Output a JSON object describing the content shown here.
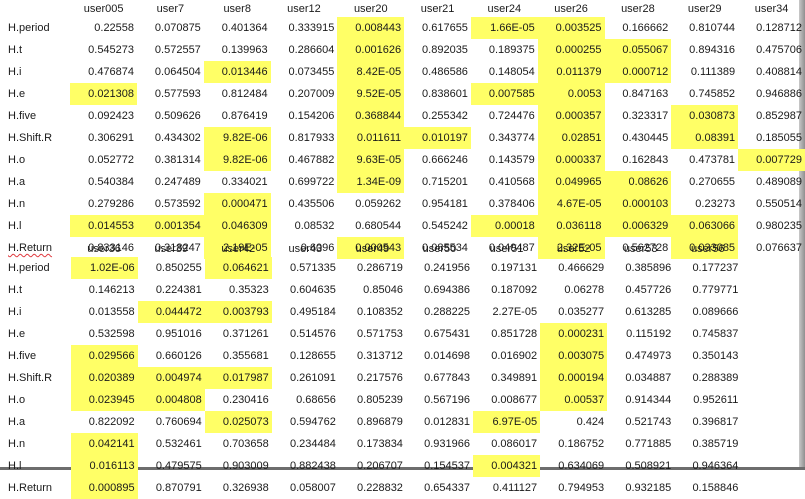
{
  "colors": {
    "highlight": "#ffff66",
    "background": "#ffffff"
  },
  "tables": [
    {
      "headers": [
        "user005",
        "user7",
        "user8",
        "user12",
        "user20",
        "user21",
        "user24",
        "user26",
        "user28",
        "user29",
        "user34"
      ],
      "rows": [
        {
          "label": "H.period",
          "cells": [
            {
              "v": "0.22558"
            },
            {
              "v": "0.070875"
            },
            {
              "v": "0.401364"
            },
            {
              "v": "0.333915"
            },
            {
              "v": "0.008443",
              "hl": true
            },
            {
              "v": "0.617655"
            },
            {
              "v": "1.66E-05",
              "hl": true
            },
            {
              "v": "0.003525",
              "hl": true
            },
            {
              "v": "0.166662"
            },
            {
              "v": "0.810744"
            },
            {
              "v": "0.128712"
            }
          ]
        },
        {
          "label": "H.t",
          "cells": [
            {
              "v": "0.545273"
            },
            {
              "v": "0.572557"
            },
            {
              "v": "0.139963"
            },
            {
              "v": "0.286604"
            },
            {
              "v": "0.001626",
              "hl": true
            },
            {
              "v": "0.892035"
            },
            {
              "v": "0.189375"
            },
            {
              "v": "0.000255",
              "hl": true
            },
            {
              "v": "0.055067",
              "hl": true
            },
            {
              "v": "0.894316"
            },
            {
              "v": "0.475706"
            }
          ]
        },
        {
          "label": "H.i",
          "cells": [
            {
              "v": "0.476874"
            },
            {
              "v": "0.064504"
            },
            {
              "v": "0.013446",
              "hl": true
            },
            {
              "v": "0.073455"
            },
            {
              "v": "8.42E-05",
              "hl": true
            },
            {
              "v": "0.486586"
            },
            {
              "v": "0.148054"
            },
            {
              "v": "0.011379",
              "hl": true
            },
            {
              "v": "0.000712",
              "hl": true
            },
            {
              "v": "0.111389"
            },
            {
              "v": "0.408814"
            }
          ]
        },
        {
          "label": "H.e",
          "cells": [
            {
              "v": "0.021308",
              "hl": true
            },
            {
              "v": "0.577593"
            },
            {
              "v": "0.812484"
            },
            {
              "v": "0.207009"
            },
            {
              "v": "9.52E-05",
              "hl": true
            },
            {
              "v": "0.838601"
            },
            {
              "v": "0.007585",
              "hl": true
            },
            {
              "v": "0.0053",
              "hl": true
            },
            {
              "v": "0.847163"
            },
            {
              "v": "0.745852"
            },
            {
              "v": "0.946886"
            }
          ]
        },
        {
          "label": "H.five",
          "cells": [
            {
              "v": "0.092423"
            },
            {
              "v": "0.509626"
            },
            {
              "v": "0.876419"
            },
            {
              "v": "0.154206"
            },
            {
              "v": "0.368844",
              "hl": true
            },
            {
              "v": "0.255342"
            },
            {
              "v": "0.724476"
            },
            {
              "v": "0.000357",
              "hl": true
            },
            {
              "v": "0.323317"
            },
            {
              "v": "0.030873",
              "hl": true
            },
            {
              "v": "0.852987"
            }
          ]
        },
        {
          "label": "H.Shift.R",
          "cells": [
            {
              "v": "0.306291"
            },
            {
              "v": "0.434302"
            },
            {
              "v": "9.82E-06",
              "hl": true
            },
            {
              "v": "0.817933"
            },
            {
              "v": "0.011611",
              "hl": true
            },
            {
              "v": "0.010197",
              "hl": true
            },
            {
              "v": "0.343774"
            },
            {
              "v": "0.02851",
              "hl": true
            },
            {
              "v": "0.430445"
            },
            {
              "v": "0.08391",
              "hl": true
            },
            {
              "v": "0.185055"
            }
          ]
        },
        {
          "label": "H.o",
          "cells": [
            {
              "v": "0.052772"
            },
            {
              "v": "0.381314"
            },
            {
              "v": "9.82E-06",
              "hl": true
            },
            {
              "v": "0.467882"
            },
            {
              "v": "9.63E-05",
              "hl": true
            },
            {
              "v": "0.666246"
            },
            {
              "v": "0.143579"
            },
            {
              "v": "0.000337",
              "hl": true
            },
            {
              "v": "0.162843"
            },
            {
              "v": "0.473781"
            },
            {
              "v": "0.007729",
              "hl": true
            }
          ]
        },
        {
          "label": "H.a",
          "cells": [
            {
              "v": "0.540384"
            },
            {
              "v": "0.247489"
            },
            {
              "v": "0.334021"
            },
            {
              "v": "0.699722"
            },
            {
              "v": "1.34E-09",
              "hl": true
            },
            {
              "v": "0.715201"
            },
            {
              "v": "0.410568"
            },
            {
              "v": "0.049965",
              "hl": true
            },
            {
              "v": "0.08626",
              "hl": true
            },
            {
              "v": "0.270655"
            },
            {
              "v": "0.489089"
            }
          ]
        },
        {
          "label": "H.n",
          "cells": [
            {
              "v": "0.279286"
            },
            {
              "v": "0.573592"
            },
            {
              "v": "0.000471",
              "hl": true
            },
            {
              "v": "0.435506"
            },
            {
              "v": "0.059262"
            },
            {
              "v": "0.954181"
            },
            {
              "v": "0.378406"
            },
            {
              "v": "4.67E-05",
              "hl": true
            },
            {
              "v": "0.000103",
              "hl": true
            },
            {
              "v": "0.23273"
            },
            {
              "v": "0.550514"
            }
          ]
        },
        {
          "label": "H.l",
          "cells": [
            {
              "v": "0.014553",
              "hl": true
            },
            {
              "v": "0.001354",
              "hl": true
            },
            {
              "v": "0.046309",
              "hl": true
            },
            {
              "v": "0.08532"
            },
            {
              "v": "0.680544"
            },
            {
              "v": "0.545242"
            },
            {
              "v": "0.00018",
              "hl": true
            },
            {
              "v": "0.036118",
              "hl": true
            },
            {
              "v": "0.006329",
              "hl": true
            },
            {
              "v": "0.063066",
              "hl": true
            },
            {
              "v": "0.980235"
            }
          ]
        },
        {
          "label": "H.Return",
          "squiggle": true,
          "cells": [
            {
              "v": "0.833146"
            },
            {
              "v": "0.318247"
            },
            {
              "v": "2.19E-05",
              "hl": true
            },
            {
              "v": "0.6096"
            },
            {
              "v": "0.000543",
              "hl": true
            },
            {
              "v": "0.085534"
            },
            {
              "v": "0.040487"
            },
            {
              "v": "2.32E-05",
              "hl": true
            },
            {
              "v": "0.562728"
            },
            {
              "v": "0.033085",
              "hl": true
            },
            {
              "v": "0.076637"
            }
          ]
        }
      ]
    },
    {
      "headers": [
        "user36",
        "user39",
        "user42",
        "user43",
        "user49",
        "user50",
        "user51",
        "user52",
        "user53",
        "user56"
      ],
      "rows": [
        {
          "label": "H.period",
          "cells": [
            {
              "v": "1.02E-06",
              "hl": true
            },
            {
              "v": "0.850255"
            },
            {
              "v": "0.064621",
              "hl": true
            },
            {
              "v": "0.571335"
            },
            {
              "v": "0.286719"
            },
            {
              "v": "0.241956"
            },
            {
              "v": "0.197131"
            },
            {
              "v": "0.466629"
            },
            {
              "v": "0.385896"
            },
            {
              "v": "0.177237"
            }
          ]
        },
        {
          "label": "H.t",
          "cells": [
            {
              "v": "0.146213"
            },
            {
              "v": "0.224381"
            },
            {
              "v": "0.35323"
            },
            {
              "v": "0.604635"
            },
            {
              "v": "0.85046"
            },
            {
              "v": "0.694386"
            },
            {
              "v": "0.187092"
            },
            {
              "v": "0.06278"
            },
            {
              "v": "0.457726"
            },
            {
              "v": "0.779771"
            }
          ]
        },
        {
          "label": "H.i",
          "cells": [
            {
              "v": "0.013558"
            },
            {
              "v": "0.044472",
              "hl": true
            },
            {
              "v": "0.003793",
              "hl": true
            },
            {
              "v": "0.495184"
            },
            {
              "v": "0.108352"
            },
            {
              "v": "0.288225"
            },
            {
              "v": "2.27E-05"
            },
            {
              "v": "0.035277"
            },
            {
              "v": "0.613285"
            },
            {
              "v": "0.089666"
            }
          ]
        },
        {
          "label": "H.e",
          "cells": [
            {
              "v": "0.532598"
            },
            {
              "v": "0.951016"
            },
            {
              "v": "0.371261"
            },
            {
              "v": "0.514576"
            },
            {
              "v": "0.571753"
            },
            {
              "v": "0.675431"
            },
            {
              "v": "0.851728"
            },
            {
              "v": "0.000231",
              "hl": true
            },
            {
              "v": "0.115192"
            },
            {
              "v": "0.745837"
            }
          ]
        },
        {
          "label": "H.five",
          "cells": [
            {
              "v": "0.029566",
              "hl": true
            },
            {
              "v": "0.660126"
            },
            {
              "v": "0.355681"
            },
            {
              "v": "0.128655"
            },
            {
              "v": "0.313712"
            },
            {
              "v": "0.014698"
            },
            {
              "v": "0.016902"
            },
            {
              "v": "0.003075",
              "hl": true
            },
            {
              "v": "0.474973"
            },
            {
              "v": "0.350143"
            }
          ]
        },
        {
          "label": "H.Shift.R",
          "cells": [
            {
              "v": "0.020389",
              "hl": true
            },
            {
              "v": "0.004974",
              "hl": true
            },
            {
              "v": "0.017987",
              "hl": true
            },
            {
              "v": "0.261091"
            },
            {
              "v": "0.217576"
            },
            {
              "v": "0.677843"
            },
            {
              "v": "0.349891"
            },
            {
              "v": "0.000194",
              "hl": true
            },
            {
              "v": "0.034887"
            },
            {
              "v": "0.288389"
            }
          ]
        },
        {
          "label": "H.o",
          "cells": [
            {
              "v": "0.023945",
              "hl": true
            },
            {
              "v": "0.004808",
              "hl": true
            },
            {
              "v": "0.230416"
            },
            {
              "v": "0.68656"
            },
            {
              "v": "0.805239"
            },
            {
              "v": "0.567196"
            },
            {
              "v": "0.008677"
            },
            {
              "v": "0.00537",
              "hl": true
            },
            {
              "v": "0.914344"
            },
            {
              "v": "0.952611"
            }
          ]
        },
        {
          "label": "H.a",
          "cells": [
            {
              "v": "0.822092"
            },
            {
              "v": "0.760694"
            },
            {
              "v": "0.025073",
              "hl": true
            },
            {
              "v": "0.594762"
            },
            {
              "v": "0.896879"
            },
            {
              "v": "0.012831"
            },
            {
              "v": "6.97E-05",
              "hl": true
            },
            {
              "v": "0.424"
            },
            {
              "v": "0.521743"
            },
            {
              "v": "0.396817"
            }
          ]
        },
        {
          "label": "H.n",
          "cells": [
            {
              "v": "0.042141",
              "hl": true
            },
            {
              "v": "0.532461"
            },
            {
              "v": "0.703658"
            },
            {
              "v": "0.234484"
            },
            {
              "v": "0.173834"
            },
            {
              "v": "0.931966"
            },
            {
              "v": "0.086017"
            },
            {
              "v": "0.186752"
            },
            {
              "v": "0.771885"
            },
            {
              "v": "0.385719"
            }
          ]
        },
        {
          "label": "H.l",
          "cells": [
            {
              "v": "0.016113",
              "hl": true
            },
            {
              "v": "0.479575"
            },
            {
              "v": "0.903009"
            },
            {
              "v": "0.882438"
            },
            {
              "v": "0.206707"
            },
            {
              "v": "0.154537"
            },
            {
              "v": "0.004321",
              "hl": true
            },
            {
              "v": "0.634069"
            },
            {
              "v": "0.508921"
            },
            {
              "v": "0.946364"
            }
          ]
        },
        {
          "label": "H.Return",
          "cells": [
            {
              "v": "0.000895",
              "hl": true
            },
            {
              "v": "0.870791"
            },
            {
              "v": "0.326938"
            },
            {
              "v": "0.058007"
            },
            {
              "v": "0.228832"
            },
            {
              "v": "0.654337"
            },
            {
              "v": "0.411127"
            },
            {
              "v": "0.794953"
            },
            {
              "v": "0.932185"
            },
            {
              "v": "0.158846"
            }
          ]
        }
      ]
    }
  ]
}
